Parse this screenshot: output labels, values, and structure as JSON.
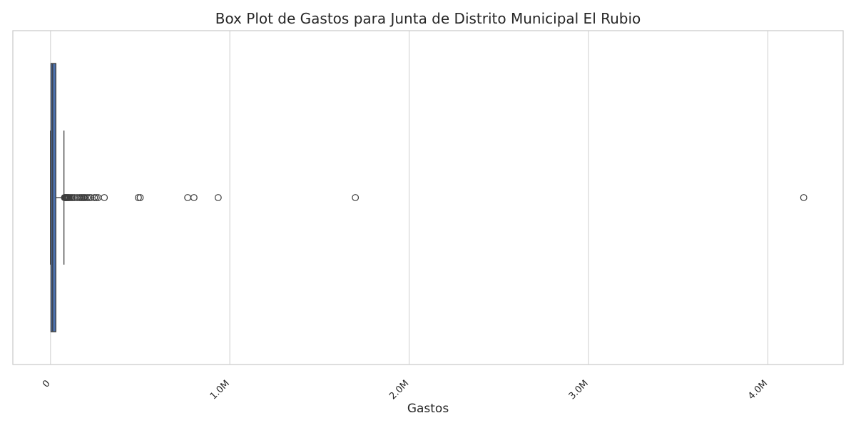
{
  "chart_data": {
    "type": "box",
    "orientation": "horizontal",
    "title": "Box Plot de Gastos para Junta de Distrito Municipal El Rubio",
    "xlabel": "Gastos",
    "ylabel": "",
    "xlim": [
      -210000,
      4420000
    ],
    "xticks": [
      {
        "value": 0,
        "label": "0"
      },
      {
        "value": 1000000,
        "label": "1.0M"
      },
      {
        "value": 2000000,
        "label": "2.0M"
      },
      {
        "value": 3000000,
        "label": "3.0M"
      },
      {
        "value": 4000000,
        "label": "4.0M"
      }
    ],
    "grid": true,
    "box": {
      "whisker_low": 0,
      "q1": 3000,
      "median": 12000,
      "q3": 30000,
      "whisker_high": 75000
    },
    "outliers": [
      78000,
      82000,
      85000,
      88000,
      92000,
      96000,
      100000,
      104000,
      110000,
      118000,
      125000,
      135000,
      148000,
      160000,
      168000,
      175000,
      182000,
      188000,
      195000,
      205000,
      215000,
      225000,
      245000,
      255000,
      265000,
      300000,
      490000,
      500000,
      765000,
      800000,
      935000,
      1700000,
      4200000
    ],
    "colors": {
      "box_fill": "#4c72b0",
      "line": "#3d3d3d",
      "grid": "#d9d9d9",
      "frame": "#cccccc"
    }
  }
}
